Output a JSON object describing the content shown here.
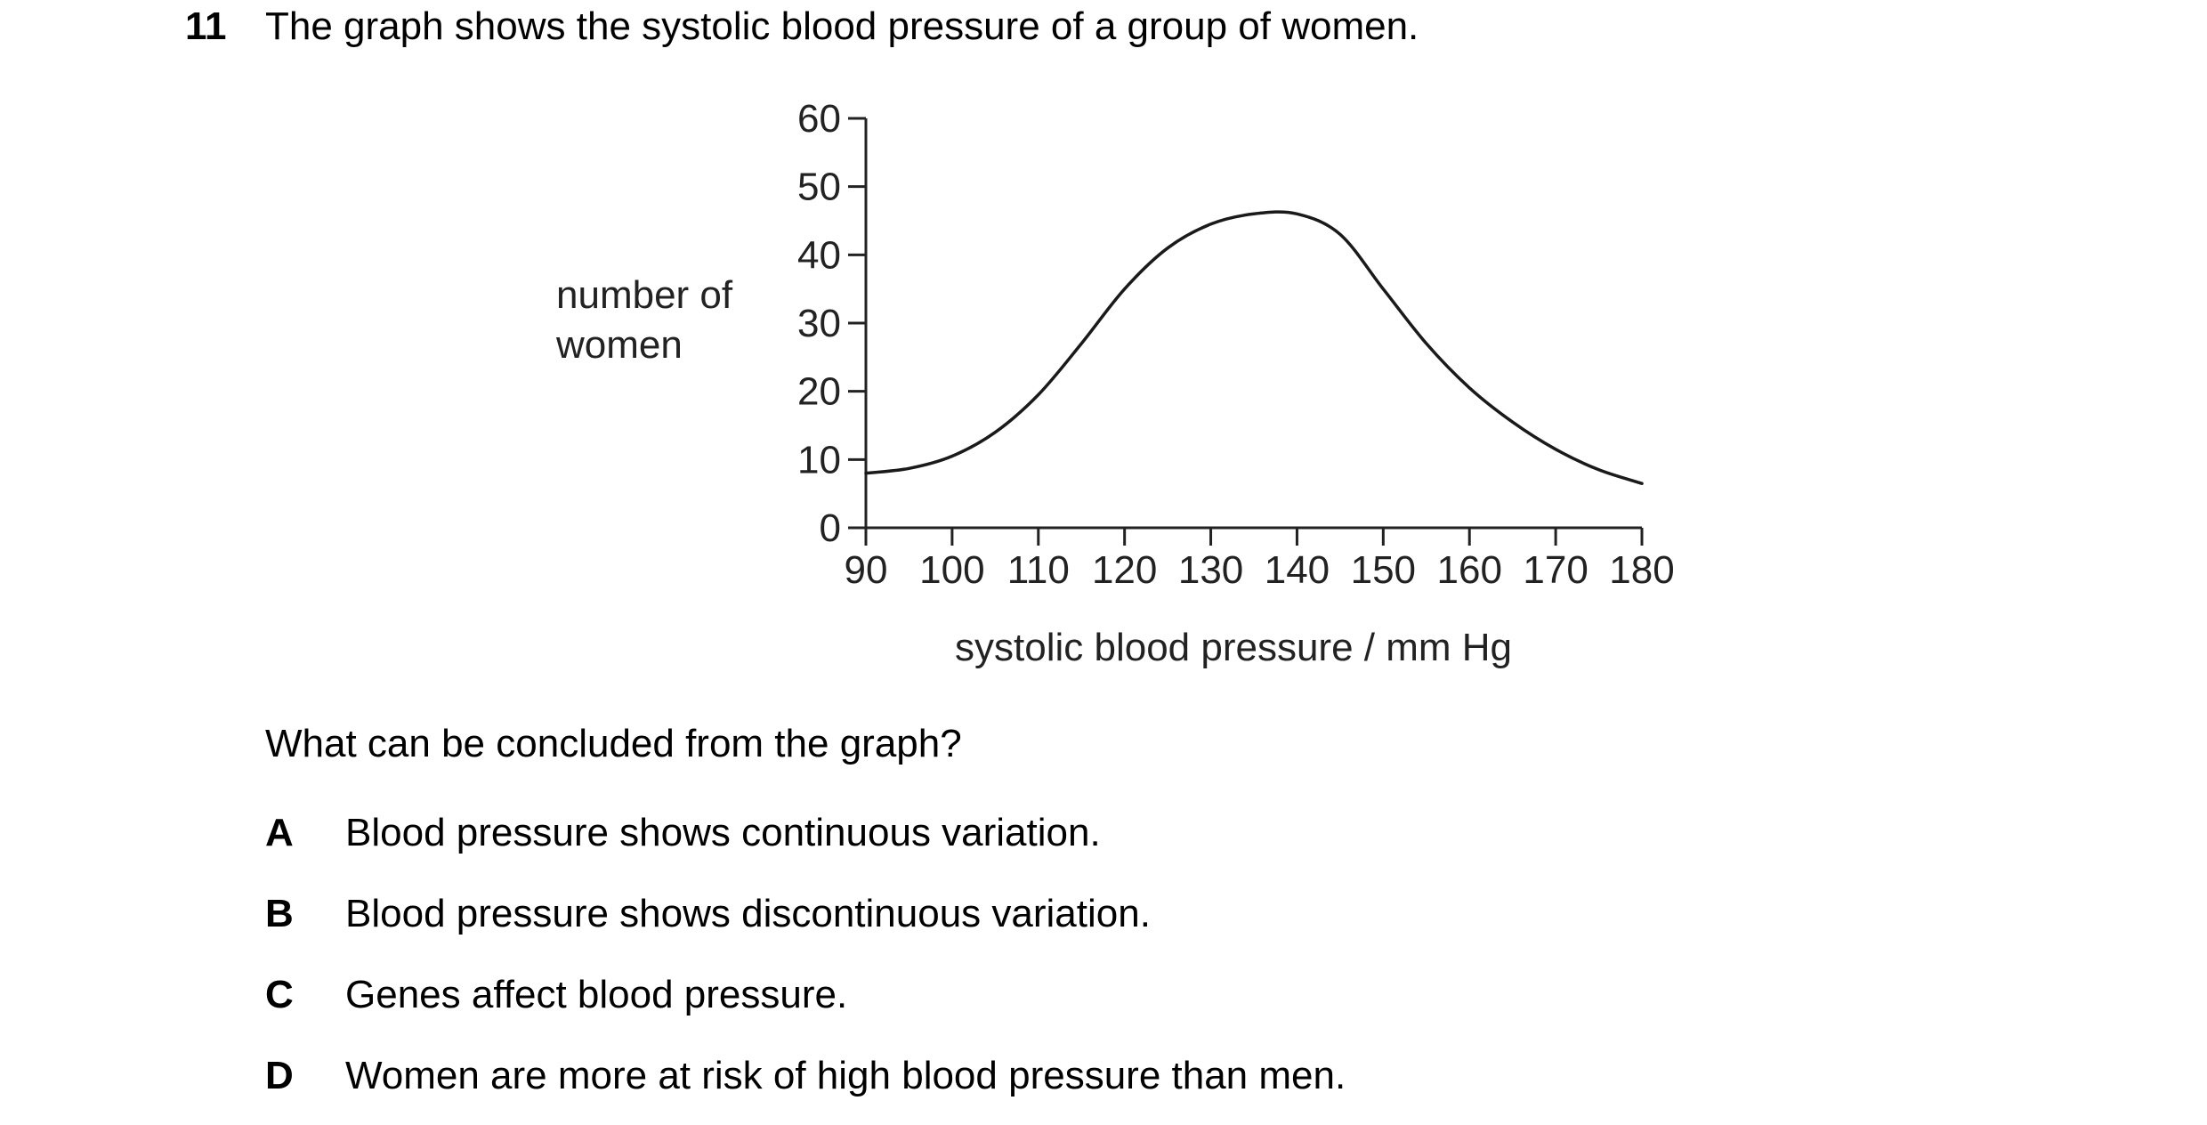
{
  "question": {
    "number": "11",
    "stem": "The graph shows the systolic blood pressure of a group of women.",
    "prompt": "What can be concluded from the graph?",
    "options": [
      {
        "letter": "A",
        "text": "Blood pressure shows continuous variation."
      },
      {
        "letter": "B",
        "text": "Blood pressure shows discontinuous variation."
      },
      {
        "letter": "C",
        "text": "Genes affect blood pressure."
      },
      {
        "letter": "D",
        "text": "Women are more at risk of high blood pressure than men."
      }
    ]
  },
  "chart_data": {
    "type": "line",
    "title": "",
    "xlabel": "systolic blood pressure / mm Hg",
    "ylabel_lines": [
      "number of",
      "women"
    ],
    "xlim": [
      90,
      180
    ],
    "ylim": [
      0,
      60
    ],
    "xticks": [
      90,
      100,
      110,
      120,
      130,
      140,
      150,
      160,
      170,
      180
    ],
    "yticks": [
      0,
      10,
      20,
      30,
      40,
      50,
      60
    ],
    "grid": false,
    "legend": "none",
    "series": [
      {
        "x": [
          90,
          95,
          100,
          105,
          110,
          115,
          120,
          125,
          130,
          135,
          140,
          145,
          150,
          155,
          160,
          165,
          170,
          175,
          180
        ],
        "y": [
          8,
          8.7,
          10.5,
          14,
          19.5,
          27,
          35,
          41,
          44.5,
          46,
          46,
          43,
          35,
          27,
          20.5,
          15.5,
          11.5,
          8.5,
          6.5
        ]
      }
    ]
  }
}
